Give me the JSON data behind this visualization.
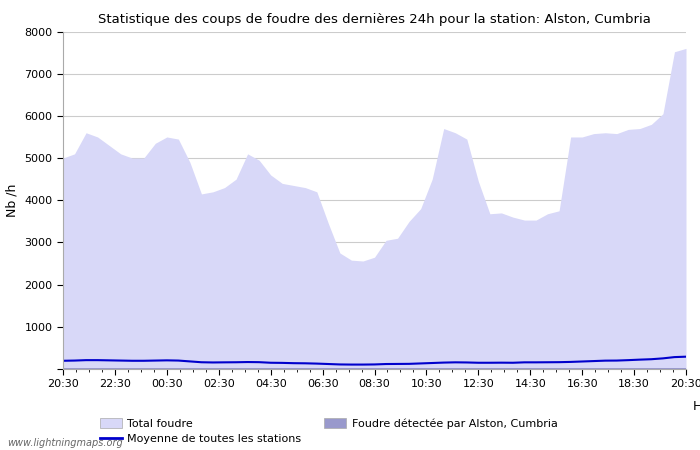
{
  "title": "Statistique des coups de foudre des dernières 24h pour la station: Alston, Cumbria",
  "ylabel": "Nb /h",
  "ylim": [
    0,
    8000
  ],
  "yticks": [
    0,
    1000,
    2000,
    3000,
    4000,
    5000,
    6000,
    7000,
    8000
  ],
  "xtick_labels": [
    "20:30",
    "22:30",
    "00:30",
    "02:30",
    "04:30",
    "06:30",
    "08:30",
    "10:30",
    "12:30",
    "14:30",
    "16:30",
    "18:30",
    "20:30"
  ],
  "watermark": "www.lightningmaps.org",
  "color_total": "#d8d8f8",
  "color_local": "#9999cc",
  "color_mean": "#0000cc",
  "legend_total": "Total foudre",
  "legend_mean": "Moyenne de toutes les stations",
  "legend_local": "Foudre détectée par Alston, Cumbria",
  "total_foudre": [
    5000,
    5100,
    5600,
    5500,
    5300,
    5100,
    5000,
    5000,
    5350,
    5500,
    5450,
    4900,
    4150,
    4200,
    4300,
    4500,
    5100,
    4950,
    4600,
    4400,
    4350,
    4300,
    4200,
    3450,
    2750,
    2580,
    2560,
    2650,
    3050,
    3100,
    3500,
    3800,
    4500,
    5700,
    5600,
    5450,
    4450,
    3680,
    3700,
    3600,
    3530,
    3530,
    3680,
    3750,
    5500,
    5500,
    5580,
    5600,
    5580,
    5680,
    5700,
    5800,
    6050,
    7520,
    7600
  ],
  "local_foudre": [
    30,
    30,
    30,
    30,
    30,
    30,
    30,
    30,
    30,
    30,
    30,
    30,
    30,
    30,
    30,
    30,
    30,
    30,
    30,
    30,
    30,
    30,
    30,
    30,
    30,
    30,
    30,
    30,
    30,
    30,
    30,
    30,
    30,
    30,
    30,
    30,
    30,
    30,
    30,
    30,
    30,
    30,
    30,
    30,
    30,
    30,
    30,
    30,
    30,
    30,
    30,
    30,
    30,
    30,
    30
  ],
  "mean_line": [
    195,
    200,
    210,
    210,
    205,
    200,
    195,
    195,
    200,
    205,
    200,
    180,
    160,
    155,
    158,
    160,
    165,
    162,
    148,
    145,
    138,
    135,
    128,
    118,
    108,
    105,
    105,
    108,
    118,
    120,
    122,
    132,
    142,
    152,
    158,
    155,
    148,
    148,
    150,
    148,
    158,
    158,
    160,
    162,
    168,
    178,
    188,
    198,
    200,
    210,
    222,
    232,
    252,
    282,
    292
  ]
}
